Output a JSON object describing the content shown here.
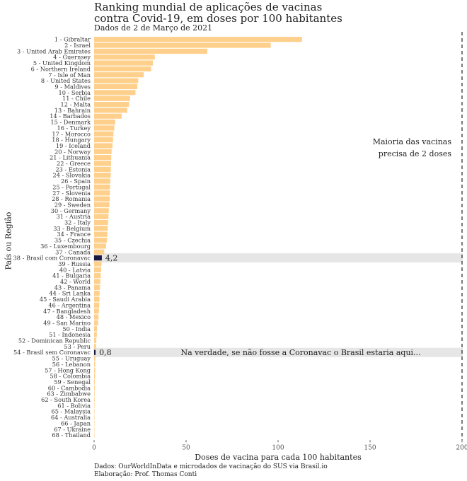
{
  "title_lines": [
    "Ranking mundial de aplicações de vacinas",
    "contra Covid-19, em doses por 100 habitantes"
  ],
  "subtitle": "Dados de 2 de Março de 2021",
  "caption_lines": [
    "Dados: OurWorldInData e microdados de vacinação do SUS via Brasil.io",
    "Elaboração: Prof. Thomas Conti"
  ],
  "colors": {
    "bar": "#FFD08C",
    "highlight_bar": "#1A1A40",
    "highlight_band": "#E6E6E6",
    "text": "#222222",
    "reference_line": "#333333"
  },
  "chart_data": {
    "type": "bar",
    "orientation": "horizontal",
    "xlabel": "Doses de vacina para cada 100 habitantes",
    "ylabel": "País ou Região",
    "xlim": [
      0,
      200
    ],
    "xticks": [
      0,
      50,
      100,
      150,
      200
    ],
    "grid": false,
    "reference_line": {
      "x": 200,
      "style": "dashed",
      "label_lines": [
        "Maioria das vacinas",
        "precisa de 2 doses"
      ]
    },
    "categories": [
      "1 - Gibraltar",
      "2 - Israel",
      "3 - United Arab Emirates",
      "4 - Guernsey",
      "5 - United Kingdom",
      "6 - Northern Ireland",
      "7 - Isle of Man",
      "8 - United States",
      "9 - Maldives",
      "10 - Serbia",
      "11 - Chile",
      "12 - Malta",
      "13 - Bahrain",
      "14 - Barbados",
      "15 - Denmark",
      "16 - Turkey",
      "17 - Morocco",
      "18 - Hungary",
      "19 - Iceland",
      "20 - Norway",
      "21 - Lithuania",
      "22 - Greece",
      "23 - Estonia",
      "24 - Slovakia",
      "26 - Spain",
      "25 - Portugal",
      "27 - Slovenia",
      "28 - Romania",
      "29 - Sweden",
      "30 - Germany",
      "31 - Austria",
      "32 - Italy",
      "33 - Belgium",
      "34 - France",
      "35 - Czechia",
      "36 - Luxembourg",
      "37 - Canada",
      "38 - Brasil com Coronavac",
      "39 - Russia",
      "40 - Latvia",
      "41 - Bulgaria",
      "42 - World",
      "43 - Panama",
      "44 - Sri Lanka",
      "45 - Saudi Arabia",
      "46 - Argentina",
      "47 - Bangladesh",
      "48 - Mexico",
      "49 - San Marino",
      "50 - India",
      "51 - Indonesia",
      "52 - Dominican Republic",
      "53 - Peru",
      "54 - Brasil sem Coronavac",
      "55 - Uruguay",
      "56 - Lebanon",
      "57 - Hong Kong",
      "58 - Colombia",
      "59 - Senegal",
      "60 - Cambodia",
      "63 - Zimbabwe",
      "62 - South Korea",
      "61 - Bolivia",
      "65 - Malaysia",
      "64 - Australia",
      "66 - Japan",
      "67 - Ukraine",
      "68 - Thailand"
    ],
    "values": [
      113,
      96,
      61.5,
      33,
      32,
      31,
      27,
      24,
      23.5,
      22.5,
      19.5,
      19,
      18,
      15,
      11.5,
      11,
      10.5,
      10.3,
      10,
      9.5,
      9.3,
      9.2,
      9.1,
      9,
      8.8,
      8.7,
      8.6,
      8.5,
      8.3,
      8,
      7.8,
      7.6,
      7.4,
      7.2,
      7,
      6.5,
      5.5,
      4.2,
      4,
      3.8,
      3.6,
      3.4,
      3.2,
      3,
      2.9,
      2.8,
      2.6,
      2.4,
      2.2,
      1.6,
      1.5,
      1.2,
      1.1,
      0.8,
      0.7,
      0.6,
      0.6,
      0.5,
      0.4,
      0.4,
      0.3,
      0.3,
      0.2,
      0.2,
      0.1,
      0.1,
      0.1,
      0.1
    ],
    "highlights": [
      {
        "category": "38 - Brasil com Coronavac",
        "value_label": "4,2",
        "note": ""
      },
      {
        "category": "54 - Brasil sem Coronavac",
        "value_label": "0,8",
        "note": "Na verdade, se não fosse a Coronavac o Brasil estaria aqui..."
      }
    ]
  }
}
